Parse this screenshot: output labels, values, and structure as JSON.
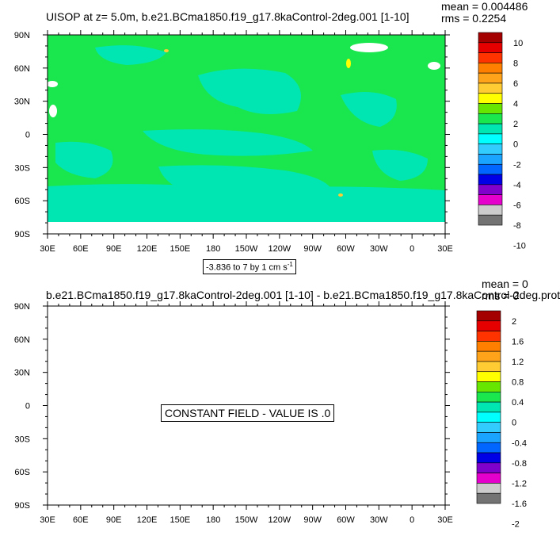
{
  "top_panel": {
    "title": "UISOP at z=   5.0m, b.e21.BCma1850.f19_g17.8kaControl-2deg.001 [1-10]",
    "mean_text": "mean = 0.004486",
    "rms_text": "rms = 0.2254",
    "range_text": "-3.836 to 7 by 1 cm s",
    "range_unit_exponent": "-1"
  },
  "bottom_panel": {
    "title": "b.e21.BCma1850.f19_g17.8kaControl-2deg.001 [1-10] - b.e21.BCma1850.f19_g17.8kaControl-2deg.prot",
    "mean_text": "mean = 0",
    "rms_text": "rms = 0",
    "constant_text": "CONSTANT FIELD - VALUE IS .0"
  },
  "chart_data": [
    {
      "type": "heatmap",
      "title": "UISOP at z=   5.0m, b.e21.BCma1850.f19_g17.8kaControl-2deg.001 [1-10]",
      "x_ticks": [
        "30E",
        "60E",
        "90E",
        "120E",
        "150E",
        "180",
        "150W",
        "120W",
        "90W",
        "60W",
        "30W",
        "0",
        "30E"
      ],
      "y_ticks": [
        "90N",
        "60N",
        "30N",
        "0",
        "30S",
        "60S",
        "90S"
      ],
      "xlim": [
        30,
        390
      ],
      "ylim": [
        -90,
        90
      ],
      "colorbar_labels": [
        "10",
        "8",
        "6",
        "4",
        "2",
        "0",
        "-2",
        "-4",
        "-6",
        "-8",
        "-10"
      ],
      "colorbar_colors": [
        "#a50000",
        "#e60000",
        "#ff3300",
        "#ff8000",
        "#ffa31a",
        "#ffcc33",
        "#ffff00",
        "#66e600",
        "#1ae64d",
        "#00e6b3",
        "#00ffff",
        "#33ccff",
        "#1aa3ff",
        "#0066ff",
        "#0000e6",
        "#8000cc",
        "#e600cc",
        "#cccccc",
        "#737373"
      ],
      "dominant_level_colors": {
        "ocean_0_to_1": "#1ae64d",
        "ocean_minus1_to_0": "#00e6b3"
      },
      "stats": {
        "mean": 0.004486,
        "rms": 0.2254
      },
      "contour_range": {
        "min": -3.836,
        "max": 7,
        "interval": 1,
        "units": "cm s-1"
      }
    },
    {
      "type": "heatmap",
      "title": "b.e21.BCma1850.f19_g17.8kaControl-2deg.001 [1-10] - b.e21.BCma1850.f19_g17.8kaControl-2deg.prot",
      "x_ticks": [
        "30E",
        "60E",
        "90E",
        "120E",
        "150E",
        "180",
        "150W",
        "120W",
        "90W",
        "60W",
        "30W",
        "0",
        "30E"
      ],
      "y_ticks": [
        "90N",
        "60N",
        "30N",
        "0",
        "30S",
        "60S",
        "90S"
      ],
      "xlim": [
        30,
        390
      ],
      "ylim": [
        -90,
        90
      ],
      "colorbar_labels": [
        "2",
        "1.6",
        "1.2",
        "0.8",
        "0.4",
        "0",
        "-0.4",
        "-0.8",
        "-1.2",
        "-1.6",
        "-2"
      ],
      "colorbar_colors": [
        "#a50000",
        "#e60000",
        "#ff3300",
        "#ff8000",
        "#ffa31a",
        "#ffcc33",
        "#ffff00",
        "#66e600",
        "#1ae64d",
        "#00e6b3",
        "#00ffff",
        "#33ccff",
        "#1aa3ff",
        "#0066ff",
        "#0000e6",
        "#8000cc",
        "#e600cc",
        "#cccccc",
        "#737373"
      ],
      "stats": {
        "mean": 0,
        "rms": 0
      },
      "constant_value": 0
    }
  ]
}
